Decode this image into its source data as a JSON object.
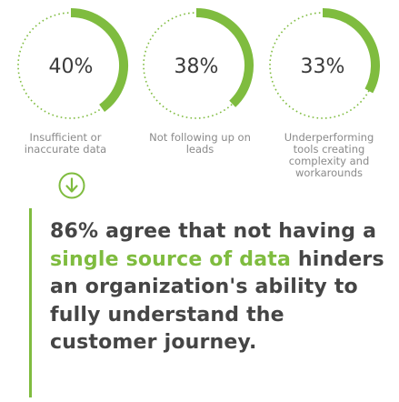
{
  "chart_data": {
    "type": "donut",
    "series": [
      {
        "value": 40,
        "label": "40%",
        "caption_lines": [
          "Insufficient or",
          "inaccurate data"
        ]
      },
      {
        "value": 38,
        "label": "38%",
        "caption_lines": [
          "Not following up on",
          "leads"
        ]
      },
      {
        "value": 33,
        "label": "33%",
        "caption_lines": [
          "Underperforming",
          "tools creating",
          "complexity and",
          "workarounds"
        ]
      }
    ],
    "colors": {
      "arc": "#7fbc3f",
      "track": "#7fbc3f"
    }
  },
  "highlight_icon": "down-arrow-circle-icon",
  "statement": {
    "part1": "86% agree that not having a ",
    "highlight": "single source of data",
    "part2": " hinders an organization's ability to fully understand the customer journey."
  },
  "colors": {
    "accent": "#7fbc3f",
    "text_dark": "#454545",
    "text_muted": "#8a8a8a"
  }
}
